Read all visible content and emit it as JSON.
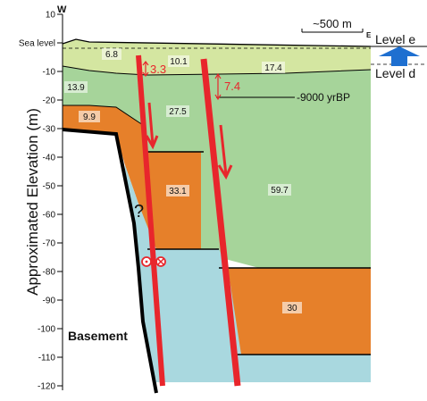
{
  "figure": {
    "y_axis_label": "Approximated Elevation (m)",
    "ticks": [
      "10",
      "Sea level",
      "-10",
      "-20",
      "-30",
      "-40",
      "-50",
      "-60",
      "-70",
      "-80",
      "-90",
      "-100",
      "-110",
      "-120"
    ],
    "west_label": "W",
    "east_label": "E",
    "scale_bar": "~500 m",
    "level_upper": "Level e",
    "level_lower": "Level d",
    "horizon_label": "-9000 yrBP",
    "basement_label": "Basement",
    "unknown_label": "?",
    "offset_west": "3.3",
    "offset_east": "7.4",
    "units": [
      "6.8",
      "13.9",
      "9.9",
      "10.1",
      "27.5",
      "33.1",
      "17.4",
      "59.7",
      "30"
    ],
    "colors": {
      "light_green": "#d4e6a1",
      "green": "#a6d49a",
      "orange": "#e6802a",
      "blue": "#a9d8df",
      "fault": "#e8262c",
      "level_arrow": "#1e6fd0"
    }
  }
}
